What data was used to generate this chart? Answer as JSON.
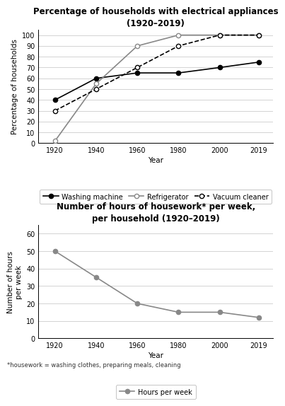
{
  "years": [
    1920,
    1940,
    1960,
    1980,
    2000,
    2019
  ],
  "washing_machine": [
    40,
    60,
    65,
    65,
    70,
    75
  ],
  "refrigerator": [
    2,
    55,
    90,
    100,
    100,
    100
  ],
  "vacuum_cleaner": [
    30,
    50,
    70,
    90,
    100,
    100
  ],
  "hours_per_week": [
    50,
    35,
    20,
    15,
    15,
    12
  ],
  "title1": "Percentage of households with electrical appliances\n(1920–2019)",
  "title2": "Number of hours of housework* per week,\nper household (1920–2019)",
  "ylabel1": "Percentage of households",
  "ylabel2": "Number of hours\nper week",
  "xlabel": "Year",
  "footnote": "*housework = washing clothes, preparing meals, cleaning",
  "gray": "#888888",
  "black": "#000000",
  "bg_color": "#ffffff",
  "yticks1": [
    0,
    10,
    20,
    30,
    40,
    50,
    60,
    70,
    80,
    90,
    100
  ],
  "yticks2": [
    0,
    10,
    20,
    30,
    40,
    50,
    60
  ],
  "title_fontsize": 8.5,
  "label_fontsize": 7.5,
  "tick_fontsize": 7,
  "legend_fontsize": 7
}
